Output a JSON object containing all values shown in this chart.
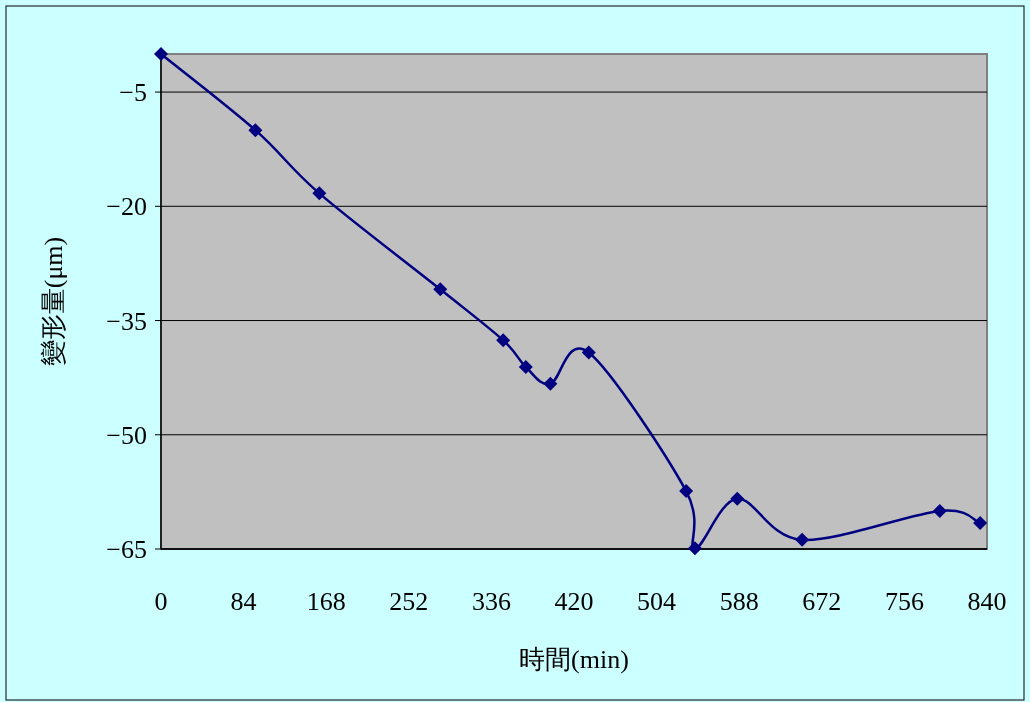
{
  "chart_data": {
    "type": "line",
    "xlabel": "時間(min)",
    "ylabel": "變形量(μm)",
    "x": [
      0,
      96,
      161,
      284,
      348,
      371,
      396,
      435,
      534,
      543,
      586,
      652,
      792,
      833
    ],
    "series": [
      {
        "color": "#000080",
        "values": [
          0,
          -10.0,
          -18.3,
          -30.9,
          -37.6,
          -41.1,
          -43.3,
          -39.2,
          -57.4,
          -64.9,
          -58.4,
          -63.8,
          -60.0,
          -61.6
        ]
      }
    ],
    "xlim": [
      0,
      840
    ],
    "xticks": [
      0,
      84,
      168,
      252,
      336,
      420,
      504,
      588,
      672,
      756,
      840
    ],
    "ylim": [
      -65,
      0
    ],
    "yticks": [
      -65,
      -50,
      -35,
      -20,
      -5
    ],
    "grid": "y",
    "marker": "diamond",
    "line_style": "solid"
  }
}
